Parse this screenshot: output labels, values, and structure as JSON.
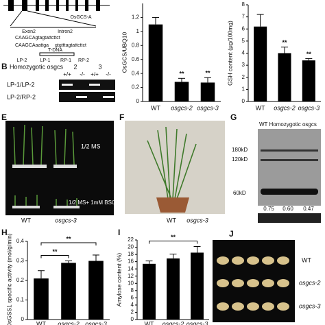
{
  "panels": {
    "a": {
      "gene": "OsGCS-A",
      "exon": "Exon2",
      "intron": "Intron2",
      "insert": "T-DNA",
      "seq1": "CAAGCAgtagtattcttct",
      "seq2": "CAAGCAaattga",
      "seq3": "gtgtttagtattcttct",
      "primers": [
        "LP-2",
        "LP-1",
        "RP-1",
        "RP-2"
      ]
    },
    "b": {
      "label": "B",
      "title": "Homozygotic osgcs",
      "lines": [
        "2",
        "3"
      ],
      "genotypes": [
        "+/+",
        "-/-",
        "+/+",
        "-/-"
      ],
      "rows": [
        "LP-1/LP-2",
        "LP-2/RP-2"
      ]
    },
    "e": {
      "label": "E",
      "conditions": [
        "1/2 MS",
        "1/2 MS+ 1mM BSO"
      ],
      "lines": [
        "WT",
        "osgcs-3"
      ]
    },
    "f": {
      "label": "F",
      "lines": [
        "WT",
        "osgcs-3"
      ]
    },
    "g": {
      "label": "G",
      "header": "WT Homozygotic osgcs",
      "lines": [
        "2",
        "3"
      ],
      "markers": [
        "180kD",
        "120kD",
        "60kD"
      ],
      "ratios": [
        "0.75",
        "0.60",
        "0.47"
      ]
    },
    "j": {
      "label": "J",
      "lines": [
        "WT",
        "osgcs-2",
        "osgcs-3"
      ]
    }
  },
  "chart_data": [
    {
      "type": "bar",
      "ylabel": "OsGCS/UBQ10",
      "categories": [
        "WT",
        "osgcs-2",
        "osgcs-3"
      ],
      "values": [
        1.1,
        0.28,
        0.27
      ],
      "errors": [
        0.1,
        0.05,
        0.07
      ],
      "significance": [
        null,
        "**",
        "**"
      ],
      "ylim": [
        0,
        1.4
      ],
      "yticks": [
        0,
        0.2,
        0.4,
        0.6,
        0.8,
        1,
        1.2
      ],
      "color": "#000000"
    },
    {
      "type": "bar",
      "ylabel": "GSH content (μg/100mg)",
      "categories": [
        "WT",
        "osgcs-2",
        "osgcs-3"
      ],
      "values": [
        6.2,
        4.0,
        3.4
      ],
      "errors": [
        1.0,
        0.5,
        0.15
      ],
      "significance": [
        null,
        "**",
        "**"
      ],
      "ylim": [
        0,
        8
      ],
      "yticks": [
        0,
        1,
        2,
        3,
        4,
        5,
        6,
        7,
        8
      ],
      "color": "#000000"
    },
    {
      "type": "bar",
      "panel": "H",
      "ylabel": "OsGSS1 specific activity (mol/g/min)",
      "categories": [
        "WT",
        "osgcs-2",
        "osgcs-3"
      ],
      "values": [
        0.21,
        0.29,
        0.3
      ],
      "errors": [
        0.04,
        0.01,
        0.03
      ],
      "brackets": [
        {
          "from": "WT",
          "to": "osgcs-2",
          "label": "**"
        },
        {
          "from": "WT",
          "to": "osgcs-3",
          "label": "**"
        }
      ],
      "ylim": [
        0,
        0.4
      ],
      "yticks": [
        0,
        0.1,
        0.2,
        0.3,
        0.4
      ],
      "color": "#000000"
    },
    {
      "type": "bar",
      "panel": "I",
      "ylabel": "Amylose content (%)",
      "categories": [
        "WT",
        "osgcs-2",
        "osgcs-3"
      ],
      "values": [
        15.4,
        16.9,
        18.5
      ],
      "errors": [
        0.8,
        1.2,
        1.7
      ],
      "brackets": [
        {
          "from": "WT",
          "to": "osgcs-3",
          "label": "**"
        }
      ],
      "ylim": [
        0,
        22
      ],
      "yticks": [
        0,
        2,
        4,
        6,
        8,
        10,
        12,
        14,
        16,
        18,
        20,
        22
      ],
      "color": "#000000"
    }
  ]
}
